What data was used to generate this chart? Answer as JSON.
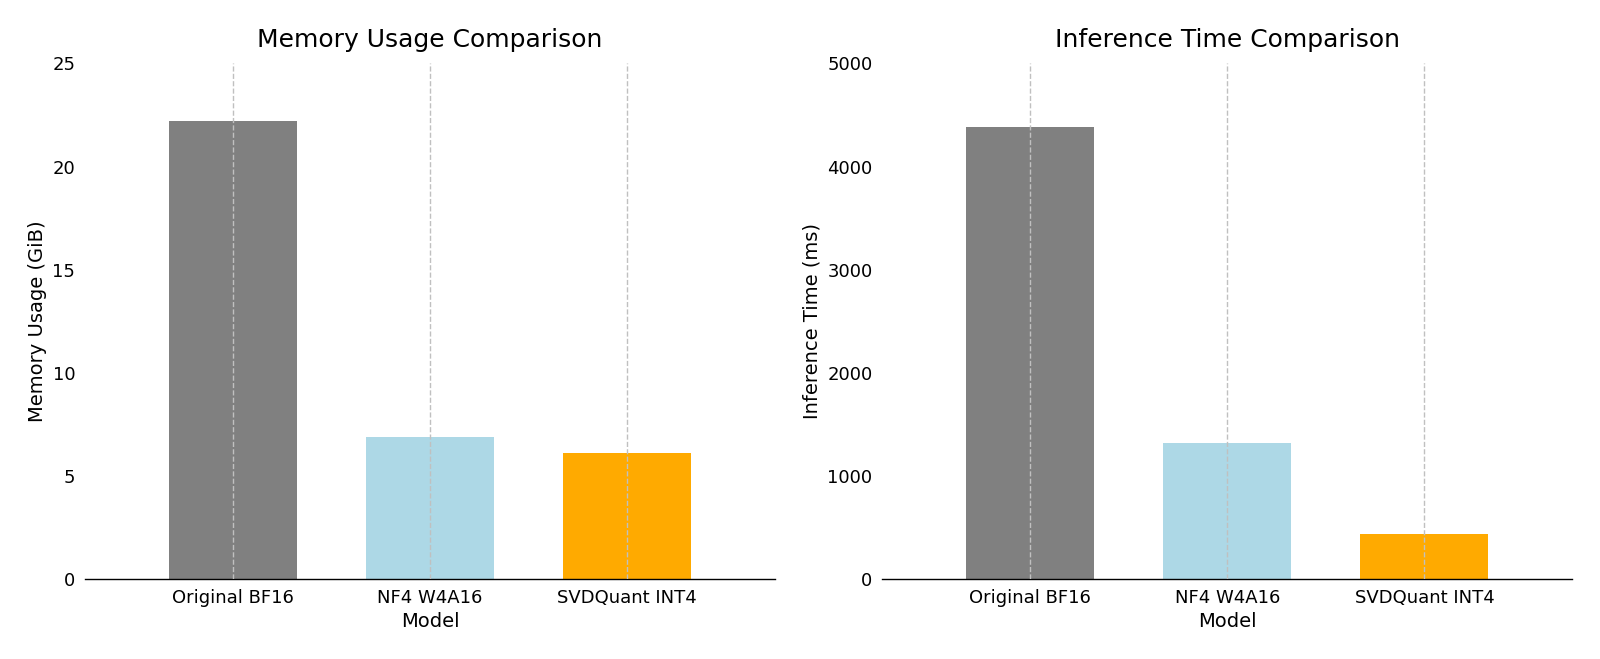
{
  "categories": [
    "Original BF16",
    "NF4 W4A16",
    "SVDQuant INT4"
  ],
  "memory_values": [
    22.2,
    6.9,
    6.1
  ],
  "time_values": [
    4382,
    1320,
    433
  ],
  "bar_colors": [
    "#808080",
    "#add8e6",
    "#ffaa00"
  ],
  "memory_title": "Memory Usage Comparison",
  "time_title": "Inference Time Comparison",
  "memory_ylabel": "Memory Usage (GiB)",
  "time_ylabel": "Inference Time (ms)",
  "xlabel": "Model",
  "memory_ylim": [
    0,
    25
  ],
  "time_ylim": [
    0,
    5000
  ],
  "memory_yticks": [
    0,
    5,
    10,
    15,
    20,
    25
  ],
  "time_yticks": [
    0,
    1000,
    2000,
    3000,
    4000,
    5000
  ],
  "background_color": "#ffffff",
  "title_fontsize": 18,
  "label_fontsize": 14,
  "tick_fontsize": 13,
  "bar_width": 0.65
}
